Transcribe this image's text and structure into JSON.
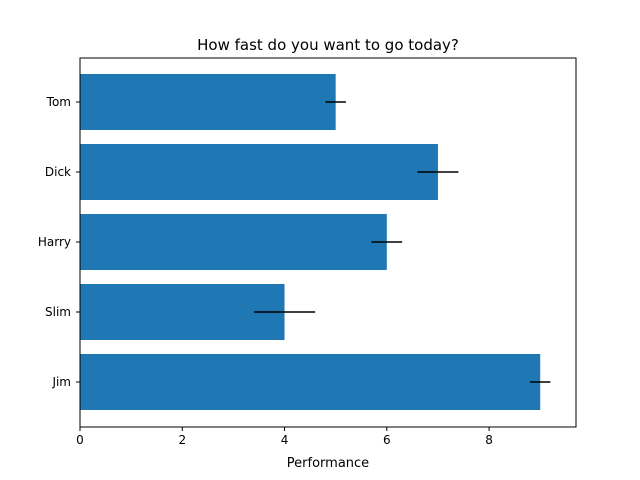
{
  "chart_data": {
    "type": "bar",
    "orientation": "horizontal",
    "title": "How fast do you want to go today?",
    "xlabel": "Performance",
    "ylabel": "",
    "categories": [
      "Tom",
      "Dick",
      "Harry",
      "Slim",
      "Jim"
    ],
    "values": [
      5,
      7,
      6,
      4,
      9
    ],
    "errors": [
      0.2,
      0.4,
      0.3,
      0.6,
      0.2
    ],
    "xlim": [
      0,
      9.7
    ],
    "xticks": [
      0,
      2,
      4,
      6,
      8
    ],
    "xtick_labels": [
      "0",
      "2",
      "4",
      "6",
      "8"
    ],
    "grid": false,
    "colors": {
      "bar": "#1f77b4",
      "errorbar": "#000000"
    }
  }
}
